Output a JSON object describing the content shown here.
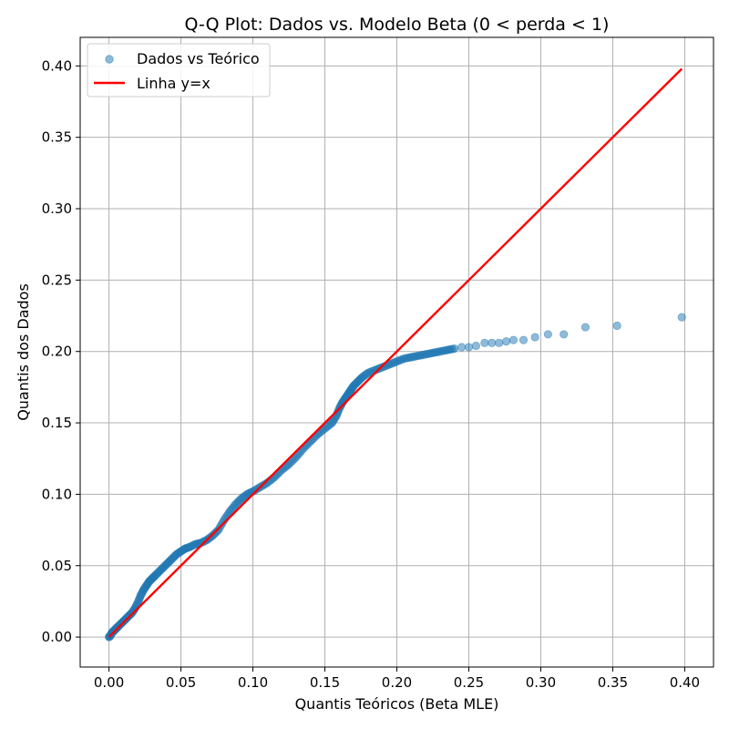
{
  "chart_data": {
    "type": "scatter",
    "title": "Q-Q Plot: Dados vs. Modelo Beta (0 < perda < 1)",
    "xlabel": "Quantis Teóricos (Beta MLE)",
    "ylabel": "Quantis dos Dados",
    "xlim": [
      -0.02,
      0.42
    ],
    "ylim": [
      -0.021,
      0.42
    ],
    "xticks": [
      0.0,
      0.05,
      0.1,
      0.15,
      0.2,
      0.25,
      0.3,
      0.35,
      0.4
    ],
    "xtick_labels": [
      "0.00",
      "0.05",
      "0.10",
      "0.15",
      "0.20",
      "0.25",
      "0.30",
      "0.35",
      "0.40"
    ],
    "yticks": [
      0.0,
      0.05,
      0.1,
      0.15,
      0.2,
      0.25,
      0.3,
      0.35,
      0.4
    ],
    "ytick_labels": [
      "0.00",
      "0.05",
      "0.10",
      "0.15",
      "0.20",
      "0.25",
      "0.30",
      "0.35",
      "0.40"
    ],
    "grid": true,
    "legend_position": "top-left",
    "series": [
      {
        "name": "Dados vs Teórico",
        "kind": "scatter",
        "color": "#1f77b4",
        "alpha": 0.5,
        "x": [
          0.0,
          0.001,
          0.002,
          0.003,
          0.004,
          0.005,
          0.006,
          0.008,
          0.01,
          0.012,
          0.014,
          0.016,
          0.018,
          0.02,
          0.022,
          0.024,
          0.026,
          0.028,
          0.03,
          0.032,
          0.035,
          0.038,
          0.041,
          0.044,
          0.047,
          0.05,
          0.053,
          0.056,
          0.06,
          0.064,
          0.068,
          0.072,
          0.076,
          0.08,
          0.084,
          0.088,
          0.092,
          0.096,
          0.1,
          0.105,
          0.11,
          0.115,
          0.12,
          0.125,
          0.13,
          0.135,
          0.14,
          0.145,
          0.15,
          0.155,
          0.158,
          0.16,
          0.162,
          0.164,
          0.166,
          0.168,
          0.17,
          0.173,
          0.176,
          0.18,
          0.185,
          0.19,
          0.195,
          0.2,
          0.205,
          0.21,
          0.215,
          0.22,
          0.225,
          0.23,
          0.235,
          0.24,
          0.245,
          0.25,
          0.255,
          0.261,
          0.266,
          0.271,
          0.276,
          0.281,
          0.288,
          0.296,
          0.305,
          0.316,
          0.331,
          0.353,
          0.398
        ],
        "y": [
          0.0,
          0.001,
          0.003,
          0.004,
          0.005,
          0.006,
          0.007,
          0.009,
          0.011,
          0.013,
          0.015,
          0.017,
          0.02,
          0.024,
          0.029,
          0.033,
          0.036,
          0.039,
          0.041,
          0.043,
          0.046,
          0.049,
          0.052,
          0.055,
          0.058,
          0.06,
          0.062,
          0.063,
          0.065,
          0.066,
          0.068,
          0.071,
          0.075,
          0.082,
          0.088,
          0.093,
          0.097,
          0.1,
          0.102,
          0.105,
          0.108,
          0.112,
          0.117,
          0.121,
          0.126,
          0.132,
          0.137,
          0.142,
          0.146,
          0.15,
          0.155,
          0.16,
          0.164,
          0.167,
          0.17,
          0.173,
          0.176,
          0.179,
          0.182,
          0.185,
          0.187,
          0.189,
          0.191,
          0.193,
          0.195,
          0.196,
          0.197,
          0.198,
          0.199,
          0.2,
          0.201,
          0.202,
          0.203,
          0.203,
          0.204,
          0.206,
          0.206,
          0.206,
          0.207,
          0.208,
          0.208,
          0.21,
          0.212,
          0.212,
          0.217,
          0.218,
          0.224
        ]
      },
      {
        "name": "Linha y=x",
        "kind": "line",
        "color": "#ff0000",
        "x": [
          0.0,
          0.398
        ],
        "y": [
          0.0,
          0.398
        ]
      }
    ]
  }
}
